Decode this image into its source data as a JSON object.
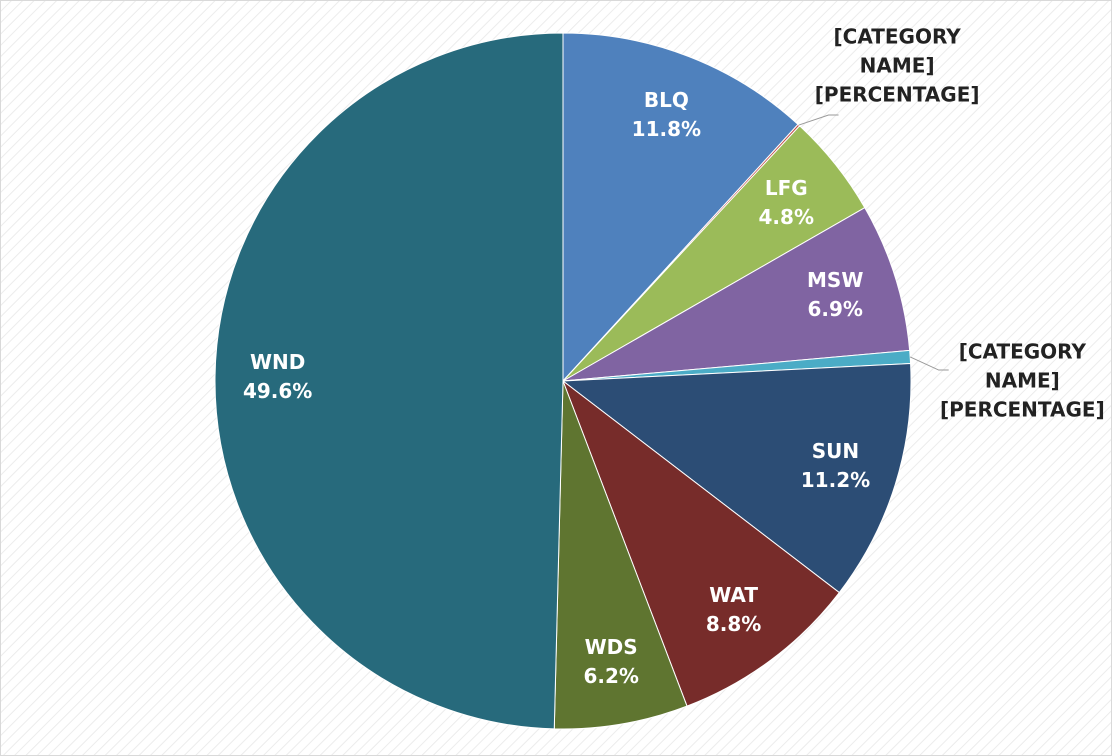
{
  "chart_data": {
    "type": "pie",
    "categories": [
      "BLQ",
      "[CATEGORY NAME]",
      "LFG",
      "MSW",
      "[CATEGORY NAME]",
      "SUN",
      "WAT",
      "WDS",
      "WND"
    ],
    "values": [
      11.8,
      0.1,
      4.8,
      6.9,
      0.6,
      11.2,
      8.8,
      6.2,
      49.6
    ],
    "value_labels": [
      "11.8%",
      "[PERCENTAGE]",
      "4.8%",
      "6.9%",
      "[PERCENTAGE]",
      "11.2%",
      "8.8%",
      "6.2%",
      "49.6%"
    ],
    "colors": [
      "#4f81bd",
      "#c0504d",
      "#9bbb59",
      "#8064a2",
      "#4bacc6",
      "#2c4d75",
      "#772c2a",
      "#5f7530",
      "#276a7c"
    ]
  }
}
